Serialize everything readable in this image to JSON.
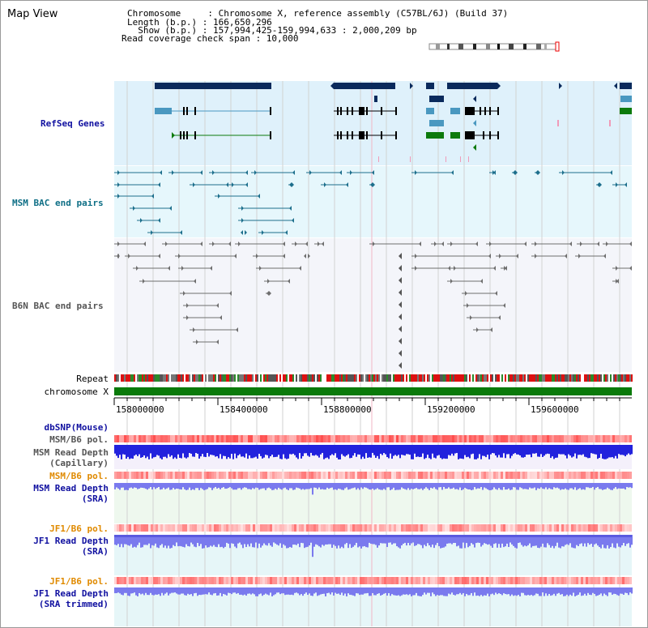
{
  "header": {
    "title": "Map View",
    "info_lines": [
      "Chromosome     : Chromosome X, reference assembly (C57BL/6J) (Build 37)",
      "Length (b.p.) : 166,650,296",
      "  Show (b.p.) : 157,994,425-159,994,633 : 2,000,209 bp",
      "Read coverage check span : 10,000"
    ]
  },
  "tracks": {
    "refseq": "RefSeq Genes",
    "msm_bac": "MSM BAC end pairs",
    "b6n_bac": "B6N BAC end pairs",
    "repeat": "Repeat",
    "chromosome": "chromosome X",
    "dbsnp": "dbSNP(Mouse)",
    "msm_b6_pol_1": "MSM/B6 pol.",
    "msm_depth_cap_1": "MSM Read Depth",
    "msm_depth_cap_2": "(Capillary)",
    "msm_b6_pol_2": "MSM/B6 pol.",
    "msm_depth_sra_1": "MSM Read Depth",
    "msm_depth_sra_2": "(SRA)",
    "jf1_b6_pol_1": "JF1/B6 pol.",
    "jf1_depth_sra_1": "JF1 Read Depth",
    "jf1_depth_sra_2": "(SRA)",
    "jf1_b6_pol_2": "JF1/B6 pol.",
    "jf1_depth_trim_1": "JF1 Read Depth",
    "jf1_depth_trim_2": "(SRA trimmed)"
  },
  "axis": {
    "ticks": [
      "158000000",
      "158400000",
      "158800000",
      "159200000",
      "159600000"
    ]
  },
  "colors": {
    "refseq_bg": "#dff1fb",
    "msm_bac_bg": "#e6f7fc",
    "b6n_bg": "#f4f5fa",
    "gene_navy": "#0a2a5c",
    "gene_lightblue": "#4a98c0",
    "gene_green": "#0c7a0c",
    "bac_teal": "#1d6f8c",
    "bac_gray": "#6e6e6e",
    "depth_blue": "#2222dd",
    "depth_light": "#7a7aee",
    "pol_red": "#ee3333",
    "chrom_green": "#0a7a0a"
  }
}
